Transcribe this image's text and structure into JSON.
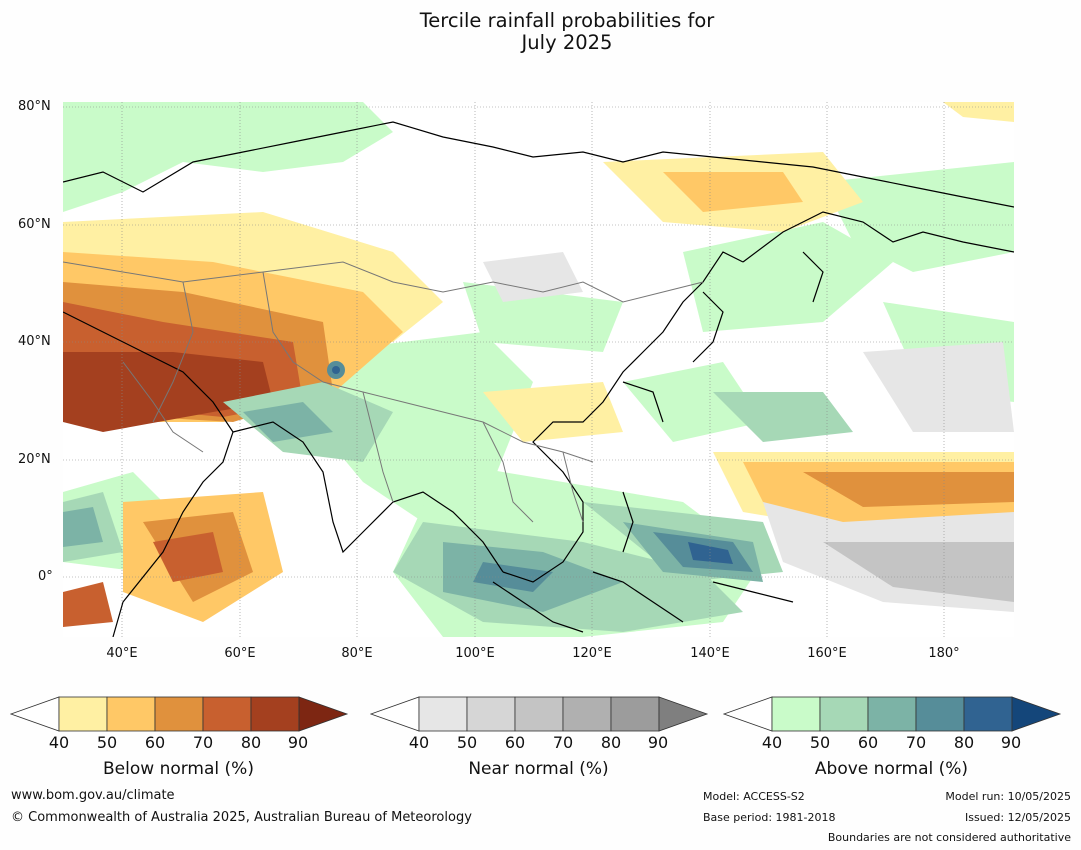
{
  "title": {
    "line1": "Tercile rainfall probabilities for",
    "line2": "July 2025"
  },
  "map": {
    "lat_labels": [
      "80°N",
      "60°N",
      "40°N",
      "20°N",
      "0°"
    ],
    "lon_labels": [
      "40°E",
      "60°E",
      "80°E",
      "100°E",
      "120°E",
      "140°E",
      "160°E",
      "180°"
    ]
  },
  "colorbars": [
    {
      "label": "Below normal (%)",
      "ticks": [
        "40",
        "50",
        "60",
        "70",
        "80",
        "90"
      ],
      "colors": [
        "#fff0a3",
        "#ffc866",
        "#e0913d",
        "#c8602f",
        "#a4401f",
        "#7d2612"
      ]
    },
    {
      "label": "Near normal (%)",
      "ticks": [
        "40",
        "50",
        "60",
        "70",
        "80",
        "90"
      ],
      "colors": [
        "#e6e6e6",
        "#d6d6d6",
        "#c4c4c4",
        "#b0b0b0",
        "#9c9c9c",
        "#7f7f7f"
      ]
    },
    {
      "label": "Above normal (%)",
      "ticks": [
        "40",
        "50",
        "60",
        "70",
        "80",
        "90"
      ],
      "colors": [
        "#c9fbc9",
        "#a6d8b6",
        "#7cb3a6",
        "#568d99",
        "#306391",
        "#14467a"
      ]
    }
  ],
  "footer": {
    "website": "www.bom.gov.au/climate",
    "copyright": "© Commonwealth of Australia 2025, Australian Bureau of Meteorology",
    "model": "Model: ACCESS-S2",
    "base_period": "Base period: 1981-2018",
    "model_run": "Model run: 10/05/2025",
    "issued": "Issued: 12/05/2025",
    "disclaimer": "Boundaries are not considered authoritative"
  }
}
